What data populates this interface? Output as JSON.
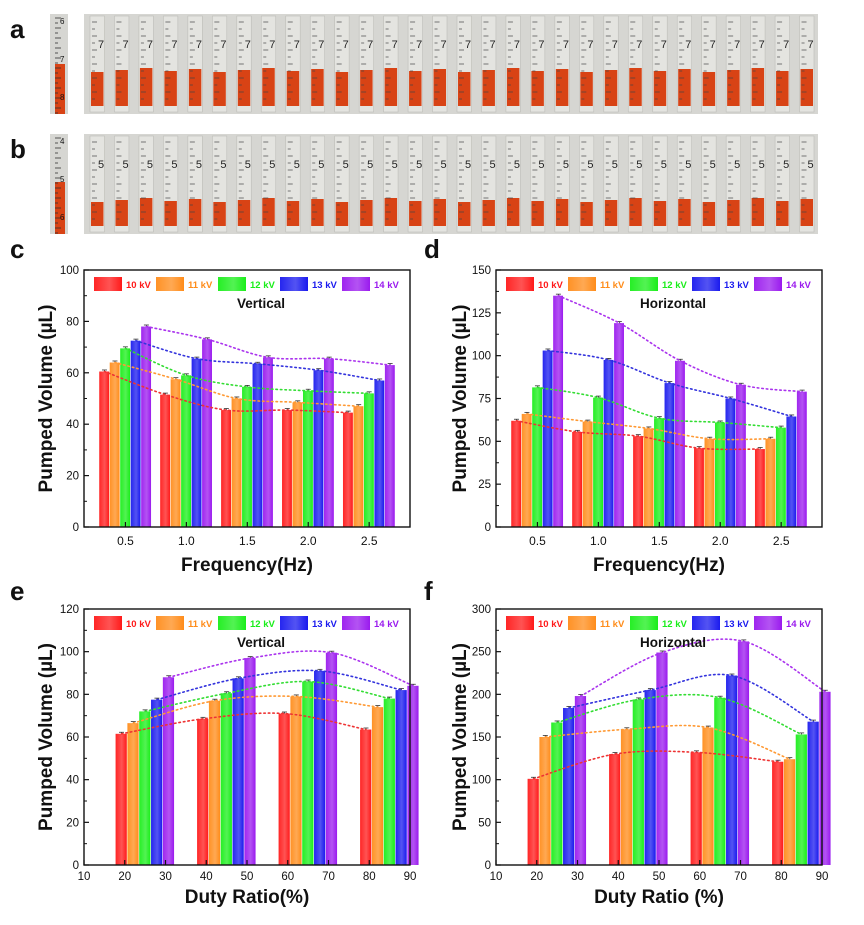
{
  "figure": {
    "photo_panels": [
      {
        "label": "a",
        "ruler_ticks": [
          "6",
          "7",
          "8"
        ],
        "tube_ticks": [
          "7"
        ]
      },
      {
        "label": "b",
        "ruler_ticks": [
          "4",
          "5",
          "6"
        ],
        "tube_ticks": [
          "5"
        ]
      }
    ],
    "legend_labels": [
      "10 kV",
      "11 kV",
      "12 kV",
      "13 kV",
      "14 kV"
    ],
    "colors": {
      "series": [
        "#ff1a1a",
        "#ff8c1a",
        "#1aee1a",
        "#1a1aee",
        "#9a1aee"
      ],
      "fit_lines": [
        "#ee3333",
        "#ff9933",
        "#33dd33",
        "#3333dd",
        "#aa33ee"
      ],
      "tube_liquid": "#d84315",
      "panel_bg": "#d6d6d2"
    }
  },
  "chart_data": [
    {
      "panel": "c",
      "type": "bar",
      "title": "Vertical",
      "xlabel": "Frequency(Hz)",
      "ylabel": "Pumped Volume (µL)",
      "categories": [
        "0.5",
        "1.0",
        "1.5",
        "2.0",
        "2.5"
      ],
      "ylim": [
        0,
        100
      ],
      "yticks": [
        "0",
        "20",
        "40",
        "60",
        "80",
        "100"
      ],
      "series": [
        {
          "name": "10 kV",
          "values": [
            60.5,
            51.5,
            45.5,
            45.5,
            44.5
          ]
        },
        {
          "name": "11 kV",
          "values": [
            64,
            57.5,
            50,
            48.5,
            47
          ]
        },
        {
          "name": "12 kV",
          "values": [
            69.5,
            59,
            54.5,
            53,
            52
          ]
        },
        {
          "name": "13 kV",
          "values": [
            72.5,
            65.5,
            63.5,
            61,
            57
          ]
        },
        {
          "name": "14 kV",
          "values": [
            78,
            73,
            66,
            65.5,
            63
          ]
        }
      ],
      "legend": "top",
      "fit_lines": true
    },
    {
      "panel": "d",
      "type": "bar",
      "title": "Horizontal",
      "xlabel": "Frequency(Hz)",
      "ylabel": "Pumped Volume (µL)",
      "categories": [
        "0.5",
        "1.0",
        "1.5",
        "2.0",
        "2.5"
      ],
      "ylim": [
        0,
        150
      ],
      "yticks": [
        "0",
        "25",
        "50",
        "75",
        "100",
        "125",
        "150"
      ],
      "series": [
        {
          "name": "10 kV",
          "values": [
            62,
            55.5,
            53,
            46,
            45.5
          ]
        },
        {
          "name": "11 kV",
          "values": [
            66,
            61.5,
            57.5,
            51.5,
            51.5
          ]
        },
        {
          "name": "12 kV",
          "values": [
            81.5,
            75.5,
            63.5,
            61,
            58
          ]
        },
        {
          "name": "13 kV",
          "values": [
            103,
            97.5,
            84,
            75,
            64.5
          ]
        },
        {
          "name": "14 kV",
          "values": [
            135,
            119,
            97,
            83,
            79
          ]
        }
      ],
      "legend": "top",
      "fit_lines": true
    },
    {
      "panel": "e",
      "type": "bar",
      "title": "Vertical",
      "xlabel": "Duty Ratio(%)",
      "ylabel": "Pumped Volume (µL)",
      "categories": [
        "20",
        "40",
        "60",
        "80"
      ],
      "xlim": [
        10,
        90
      ],
      "xticks": [
        "10",
        "20",
        "30",
        "40",
        "50",
        "60",
        "70",
        "80",
        "90"
      ],
      "ylim": [
        0,
        120
      ],
      "yticks": [
        "0",
        "20",
        "40",
        "60",
        "80",
        "100",
        "120"
      ],
      "series": [
        {
          "name": "10 kV",
          "values": [
            61.5,
            68.5,
            71,
            63.5
          ]
        },
        {
          "name": "11 kV",
          "values": [
            66.5,
            77,
            79,
            74
          ]
        },
        {
          "name": "12 kV",
          "values": [
            72,
            80.5,
            86,
            78
          ]
        },
        {
          "name": "13 kV",
          "values": [
            77.5,
            87.5,
            91,
            82
          ]
        },
        {
          "name": "14 kV",
          "values": [
            88,
            97,
            99.5,
            84
          ]
        }
      ],
      "legend": "top",
      "fit_lines": true
    },
    {
      "panel": "f",
      "type": "bar",
      "title": "Horizontal",
      "xlabel": "Duty Ratio (%)",
      "ylabel": "Pumped Volume (µL)",
      "categories": [
        "20",
        "40",
        "60",
        "80"
      ],
      "xlim": [
        10,
        90
      ],
      "xticks": [
        "10",
        "20",
        "30",
        "40",
        "50",
        "60",
        "70",
        "80",
        "90"
      ],
      "ylim": [
        0,
        300
      ],
      "yticks": [
        "0",
        "50",
        "100",
        "150",
        "200",
        "250",
        "300"
      ],
      "series": [
        {
          "name": "10 kV",
          "values": [
            101,
            130,
            132,
            121
          ]
        },
        {
          "name": "11 kV",
          "values": [
            150,
            159,
            161,
            124
          ]
        },
        {
          "name": "12 kV",
          "values": [
            167,
            194,
            196,
            153
          ]
        },
        {
          "name": "13 kV",
          "values": [
            184,
            205,
            222,
            168
          ]
        },
        {
          "name": "14 kV",
          "values": [
            198,
            249,
            262,
            203
          ]
        }
      ],
      "legend": "top",
      "fit_lines": true
    }
  ]
}
